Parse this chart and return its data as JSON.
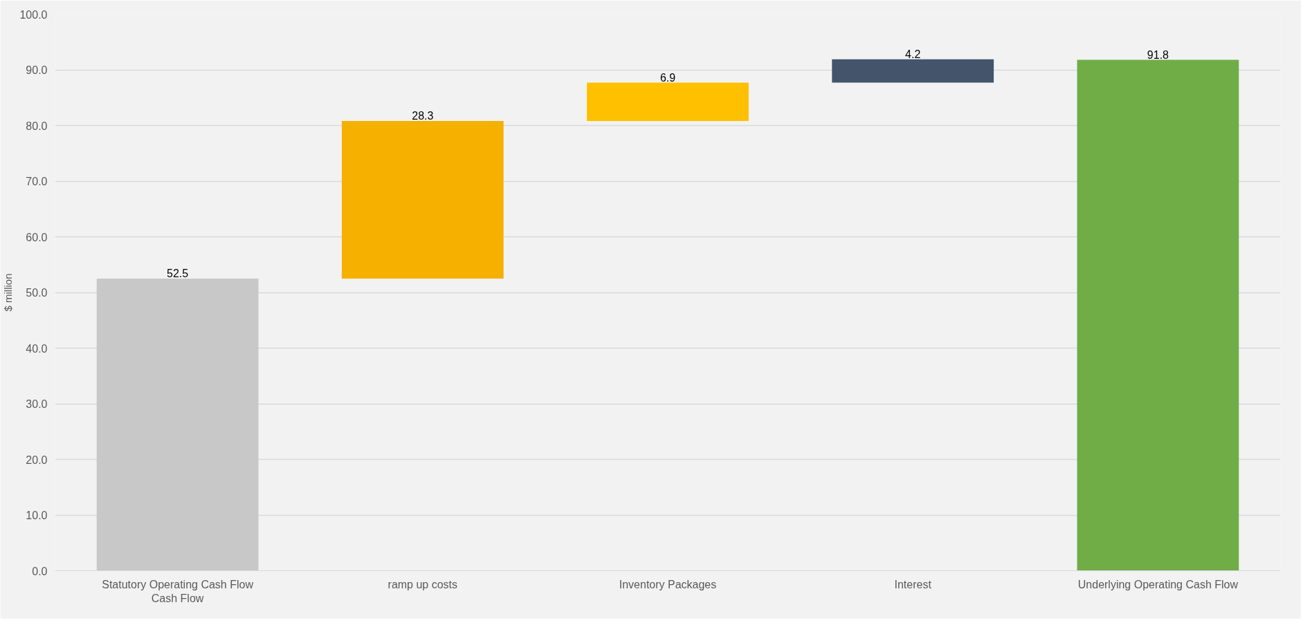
{
  "chart_data": {
    "type": "bar",
    "ylabel": "$ million",
    "categories": [
      "Statutory Operating Cash Flow\nCash Flow",
      "ramp up costs",
      "Inventory Packages",
      "Interest",
      "Underlying Operating Cash Flow"
    ],
    "values": [
      52.5,
      28.3,
      6.9,
      4.2,
      91.8
    ],
    "base": [
      0,
      52.5,
      80.8,
      87.7,
      0
    ],
    "colors": [
      "#c8c8c8",
      "#f6b000",
      "#ffc000",
      "#44546a",
      "#70ad47"
    ],
    "ylim": [
      0,
      100
    ],
    "yticks": [
      {
        "value": 0,
        "label": "0.0"
      },
      {
        "value": 10,
        "label": "10.0"
      },
      {
        "value": 20,
        "label": "20.0"
      },
      {
        "value": 30,
        "label": "30.0"
      },
      {
        "value": 40,
        "label": "40.0"
      },
      {
        "value": 50,
        "label": "50.0"
      },
      {
        "value": 60,
        "label": "60.0"
      },
      {
        "value": 70,
        "label": "70.0"
      },
      {
        "value": 80,
        "label": "80.0"
      },
      {
        "value": 90,
        "label": "90.0"
      },
      {
        "value": 100,
        "label": "100.0"
      }
    ],
    "grid": "y",
    "data_labels": true
  }
}
